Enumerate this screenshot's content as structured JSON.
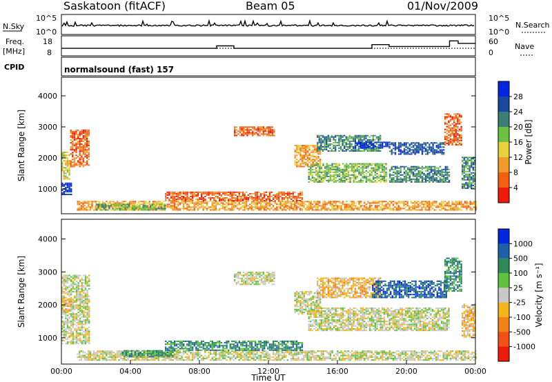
{
  "header": {
    "station": "Saskatoon (fitACF)",
    "beam": "Beam 05",
    "date": "01/Nov/2009"
  },
  "noise_panel": {
    "left_label": "N.Sky",
    "right_label": "N.Search",
    "ticks": [
      "10^5",
      "10^0"
    ]
  },
  "freq_panel": {
    "left_label_1": "Freq.",
    "left_label_2": "[MHz]",
    "left_ticks": [
      "18",
      "8"
    ],
    "right_label": "Nave",
    "right_ticks": [
      "60",
      "0"
    ]
  },
  "cpid": {
    "label": "CPID",
    "value": "normalsound (fast) 157"
  },
  "colors": {
    "power": [
      "#0028e0",
      "#1a48a0",
      "#3c7f74",
      "#6dc040",
      "#e8d23c",
      "#f29a2a",
      "#f26010",
      "#ee1a0a"
    ],
    "velocity": [
      "#0028e0",
      "#1f5fa8",
      "#2f8a5a",
      "#5ec23c",
      "#c8c8c8",
      "#f5b418",
      "#f28218",
      "#f25014",
      "#ee1a0a"
    ]
  },
  "chart_data": [
    {
      "type": "heatmap",
      "panel": "power",
      "ylabel": "Slant Range [km]",
      "yticks": [
        "4000",
        "3000",
        "2000",
        "1000"
      ],
      "ylim": [
        200,
        4600
      ],
      "xlim": [
        0,
        24
      ],
      "colorbar_label": "Power [dB]",
      "colorbar_ticks": [
        "28",
        "24",
        "20",
        "16",
        "12",
        "8",
        "4"
      ],
      "bands": [
        {
          "t0": 0.0,
          "t1": 0.6,
          "r0": 800,
          "r1": 1200,
          "level": 7
        },
        {
          "t0": 0.0,
          "t1": 0.5,
          "r0": 1300,
          "r1": 2200,
          "level": 3
        },
        {
          "t0": 0.5,
          "t1": 1.6,
          "r0": 1700,
          "r1": 2900,
          "level": 1
        },
        {
          "t0": 0.9,
          "t1": 14.5,
          "r0": 300,
          "r1": 600,
          "level": 2
        },
        {
          "t0": 2.0,
          "t1": 6.0,
          "r0": 300,
          "r1": 500,
          "level": 4
        },
        {
          "t0": 6.0,
          "t1": 14.0,
          "r0": 600,
          "r1": 900,
          "level": 1
        },
        {
          "t0": 10.0,
          "t1": 12.3,
          "r0": 2700,
          "r1": 3000,
          "level": 1
        },
        {
          "t0": 13.5,
          "t1": 15.0,
          "r0": 1700,
          "r1": 2400,
          "level": 2
        },
        {
          "t0": 14.8,
          "t1": 18.5,
          "r0": 2200,
          "r1": 2700,
          "level": 5
        },
        {
          "t0": 17.0,
          "t1": 19.0,
          "r0": 2300,
          "r1": 2500,
          "level": 7
        },
        {
          "t0": 19.0,
          "t1": 22.2,
          "r0": 2100,
          "r1": 2500,
          "level": 6
        },
        {
          "t0": 14.3,
          "t1": 18.8,
          "r0": 1200,
          "r1": 1800,
          "level": 4
        },
        {
          "t0": 19.0,
          "t1": 22.5,
          "r0": 1200,
          "r1": 1700,
          "level": 5
        },
        {
          "t0": 22.2,
          "t1": 23.2,
          "r0": 2400,
          "r1": 3400,
          "level": 1
        },
        {
          "t0": 23.2,
          "t1": 24.0,
          "r0": 1000,
          "r1": 2000,
          "level": 5
        },
        {
          "t0": 14.3,
          "t1": 24.0,
          "r0": 300,
          "r1": 600,
          "level": 2
        }
      ]
    },
    {
      "type": "heatmap",
      "panel": "velocity",
      "ylabel": "Slant Range [km]",
      "yticks": [
        "4000",
        "3000",
        "2000",
        "1000"
      ],
      "ylim": [
        200,
        4600
      ],
      "xlim": [
        0,
        24
      ],
      "xticks": [
        "00:00",
        "04:00",
        "08:00",
        "12:00",
        "16:00",
        "20:00",
        "00:00"
      ],
      "xlabel": "Time UT",
      "colorbar_label": "Velocity [m s⁻¹]",
      "colorbar_ticks": [
        "1000",
        "500",
        "100",
        "25",
        "-25",
        "-100",
        "-500",
        "-1000"
      ],
      "bands": [
        {
          "t0": 0.0,
          "t1": 1.6,
          "r0": 800,
          "r1": 2900,
          "level": 4
        },
        {
          "t0": 0.0,
          "t1": 0.6,
          "r0": 1800,
          "r1": 2200,
          "level": 3
        },
        {
          "t0": 0.9,
          "t1": 14.5,
          "r0": 300,
          "r1": 600,
          "level": 4
        },
        {
          "t0": 3.5,
          "t1": 6.5,
          "r0": 400,
          "r1": 600,
          "level": 6
        },
        {
          "t0": 6.0,
          "t1": 14.0,
          "r0": 600,
          "r1": 900,
          "level": 6
        },
        {
          "t0": 10.0,
          "t1": 12.3,
          "r0": 2600,
          "r1": 3000,
          "level": 4
        },
        {
          "t0": 13.5,
          "t1": 15.0,
          "r0": 1700,
          "r1": 2400,
          "level": 4
        },
        {
          "t0": 14.8,
          "t1": 18.5,
          "r0": 2200,
          "r1": 2800,
          "level": 3
        },
        {
          "t0": 18.0,
          "t1": 22.3,
          "r0": 2200,
          "r1": 2700,
          "level": 7
        },
        {
          "t0": 14.3,
          "t1": 22.5,
          "r0": 1200,
          "r1": 1900,
          "level": 4
        },
        {
          "t0": 22.2,
          "t1": 23.2,
          "r0": 2400,
          "r1": 3400,
          "level": 6
        },
        {
          "t0": 23.2,
          "t1": 24.0,
          "r0": 1000,
          "r1": 2000,
          "level": 3
        },
        {
          "t0": 14.3,
          "t1": 24.0,
          "r0": 300,
          "r1": 600,
          "level": 4
        }
      ]
    }
  ],
  "nave_steps": [
    {
      "t0": 0.0,
      "t1": 9.0,
      "v": 22
    },
    {
      "t0": 9.0,
      "t1": 10.0,
      "v": 30
    },
    {
      "t0": 10.0,
      "t1": 11.0,
      "v": 22
    },
    {
      "t0": 11.0,
      "t1": 18.0,
      "v": 22
    },
    {
      "t0": 18.0,
      "t1": 19.0,
      "v": 34
    },
    {
      "t0": 19.0,
      "t1": 22.5,
      "v": 28
    },
    {
      "t0": 22.5,
      "t1": 23.0,
      "v": 46
    },
    {
      "t0": 23.0,
      "t1": 24.0,
      "v": 38
    }
  ]
}
